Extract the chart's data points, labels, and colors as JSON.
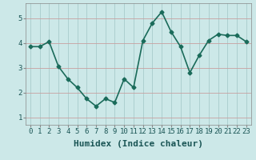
{
  "x": [
    0,
    1,
    2,
    3,
    4,
    5,
    6,
    7,
    8,
    9,
    10,
    11,
    12,
    13,
    14,
    15,
    16,
    17,
    18,
    19,
    20,
    21,
    22,
    23
  ],
  "y": [
    3.85,
    3.85,
    4.05,
    3.05,
    2.55,
    2.2,
    1.75,
    1.45,
    1.75,
    1.6,
    2.55,
    2.2,
    4.1,
    4.8,
    5.25,
    4.45,
    3.85,
    2.8,
    3.5,
    4.1,
    4.35,
    4.3,
    4.3,
    4.05
  ],
  "line_color": "#1a6b5a",
  "marker": "D",
  "marker_size": 2.5,
  "background_color": "#cce8e8",
  "grid_color_h": "#c8a0a0",
  "grid_color_v": "#a8cccc",
  "xlabel": "Humidex (Indice chaleur)",
  "xlabel_fontsize": 8,
  "ylabel_ticks": [
    1,
    2,
    3,
    4,
    5
  ],
  "xticks": [
    0,
    1,
    2,
    3,
    4,
    5,
    6,
    7,
    8,
    9,
    10,
    11,
    12,
    13,
    14,
    15,
    16,
    17,
    18,
    19,
    20,
    21,
    22,
    23
  ],
  "ylim": [
    0.7,
    5.6
  ],
  "xlim": [
    -0.5,
    23.5
  ],
  "tick_fontsize": 6.5,
  "linewidth": 1.2,
  "spine_color": "#888888"
}
